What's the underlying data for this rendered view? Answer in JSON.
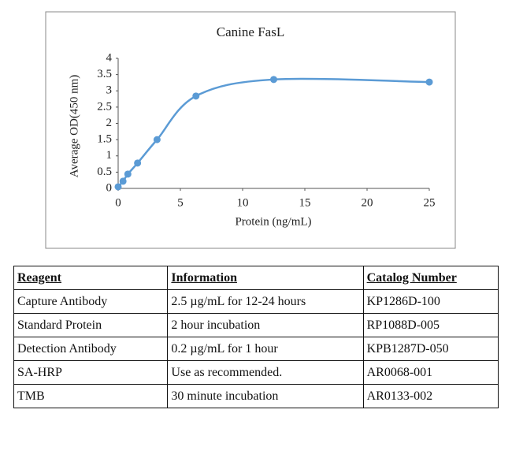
{
  "chart_data": {
    "type": "line",
    "title": "Canine FasL",
    "x_label": "Protein (ng/mL)",
    "y_label": "Average OD(450 nm)",
    "x": [
      0,
      0.39,
      0.78,
      1.56,
      3.125,
      6.25,
      12.5,
      25
    ],
    "series": [
      {
        "name": "Canine FasL",
        "color": "#5b9bd5",
        "values": [
          0.05,
          0.22,
          0.44,
          0.78,
          1.5,
          2.84,
          3.35,
          3.27
        ]
      }
    ],
    "xlim": [
      0,
      25
    ],
    "xticks": [
      0,
      5,
      10,
      15,
      20,
      25
    ],
    "ylim": [
      0,
      4
    ],
    "yticks": [
      0,
      0.5,
      1,
      1.5,
      2,
      2.5,
      3,
      3.5,
      4
    ]
  },
  "table": {
    "rows": [
      [
        "Reagent",
        "Information",
        "Catalog Number"
      ],
      [
        "Capture Antibody",
        "2.5 µg/mL for 12-24 hours",
        "KP1286D-100"
      ],
      [
        "Standard Protein",
        "2 hour incubation",
        "RP1088D-005"
      ],
      [
        "Detection Antibody",
        "0.2 µg/mL for 1 hour",
        "KPB1287D-050"
      ],
      [
        "SA-HRP",
        "Use as recommended.",
        "AR0068-001"
      ],
      [
        "TMB",
        "30 minute incubation",
        "AR0133-002"
      ]
    ]
  }
}
